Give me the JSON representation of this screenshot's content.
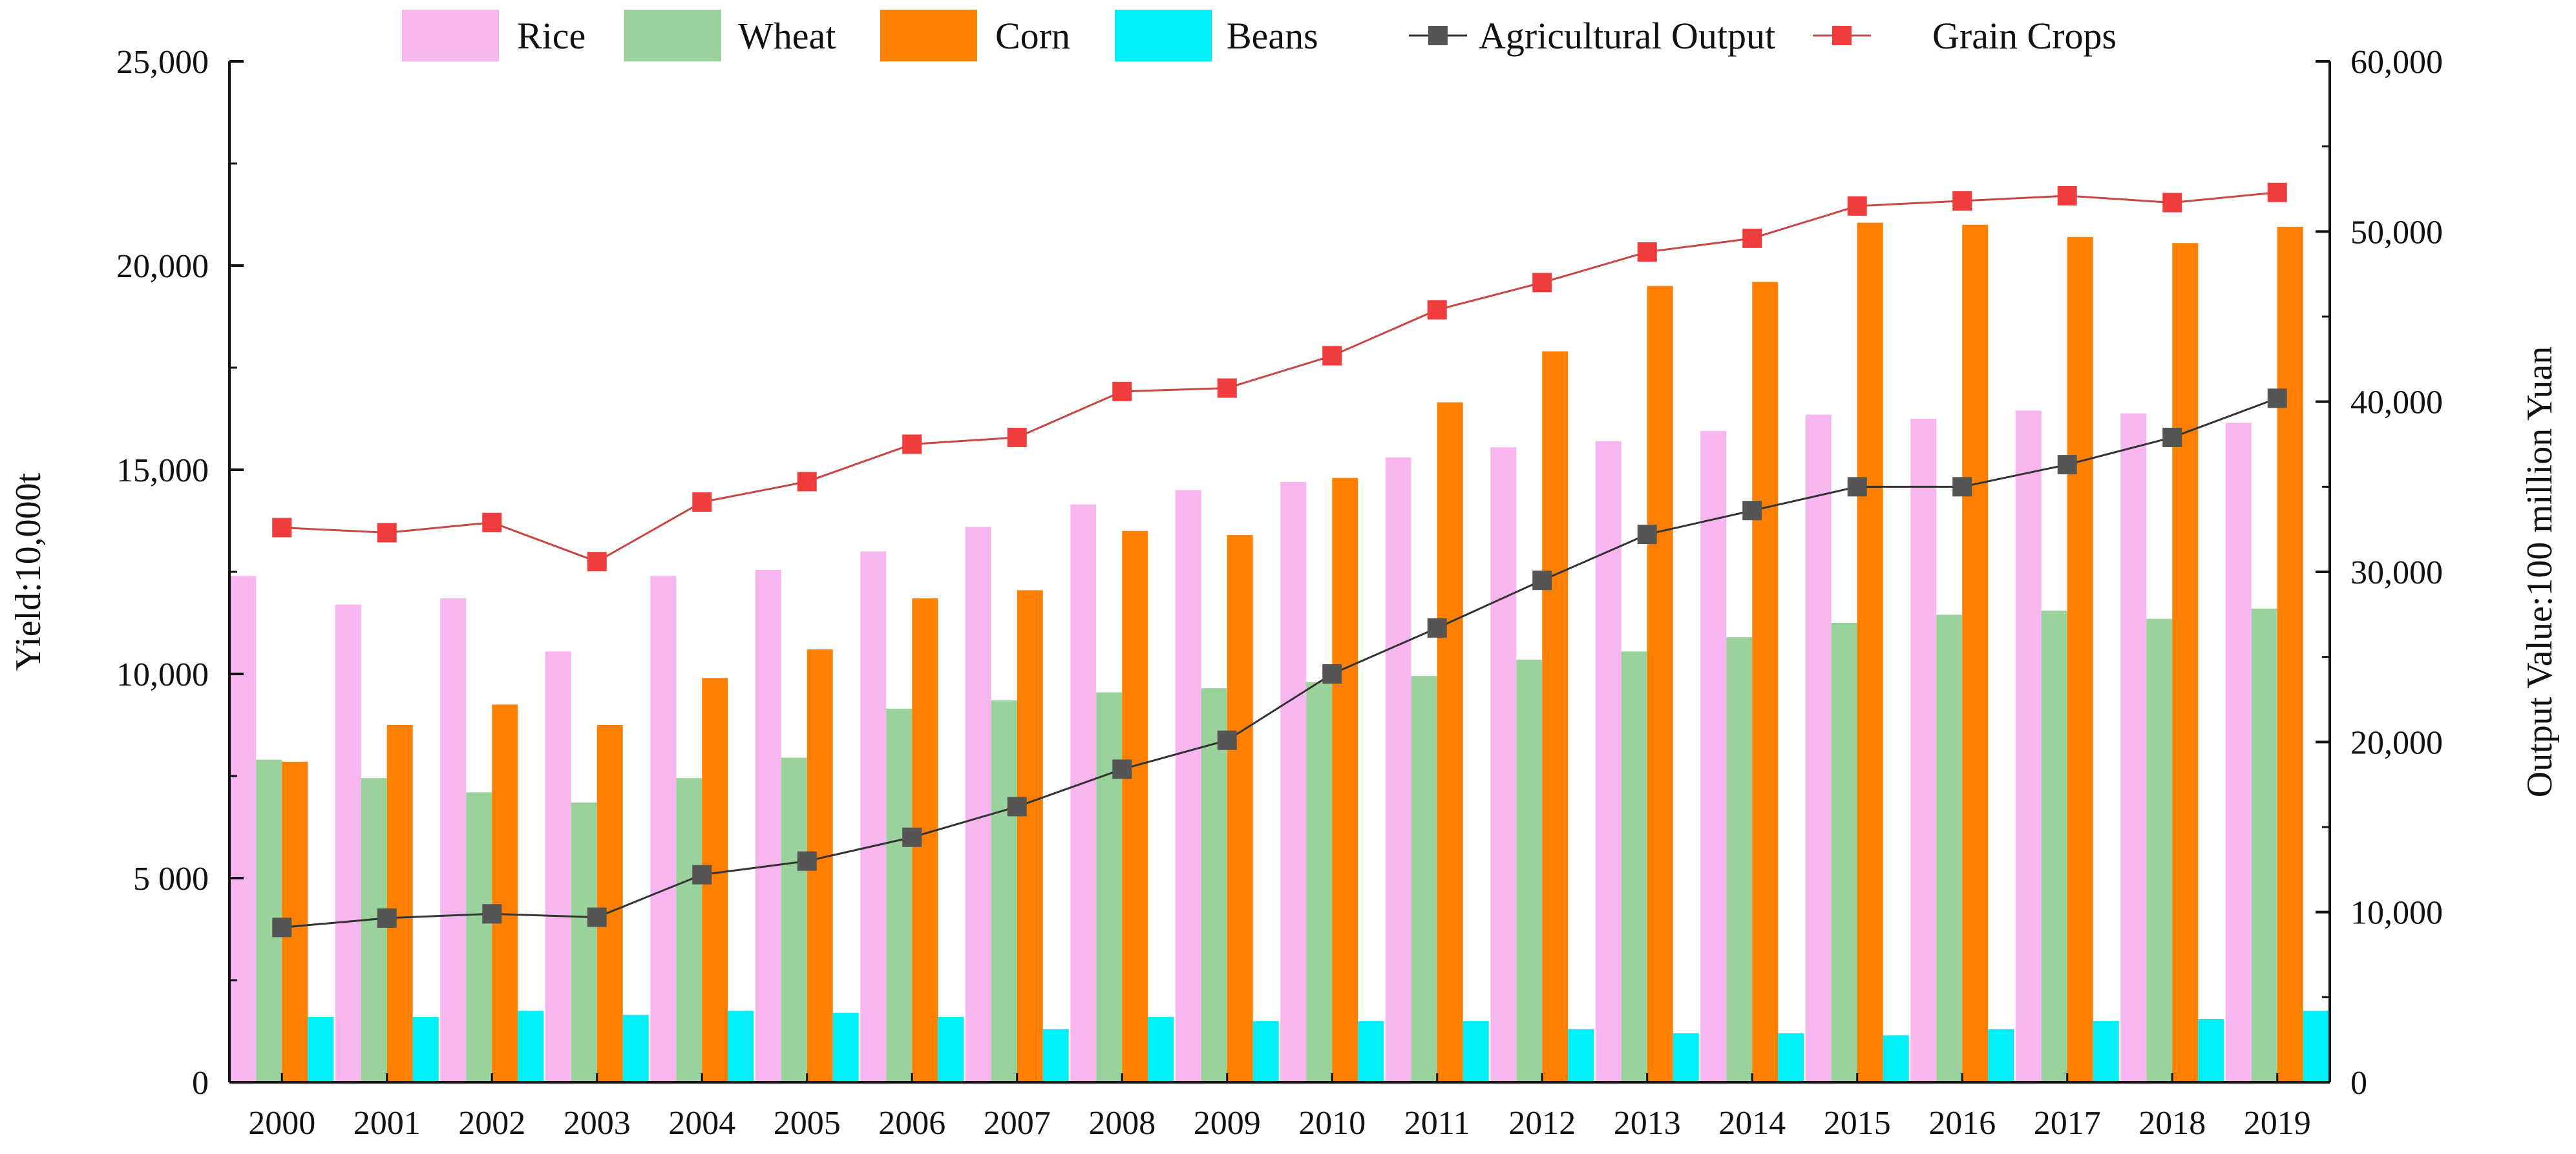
{
  "chart_data": {
    "type": "bar",
    "title": "",
    "xlabel": "",
    "ylabel": "Yield:10,000t",
    "y2label": "Output Value:100 million Yuan",
    "ylim": [
      0,
      25000
    ],
    "y2lim": [
      0,
      60000
    ],
    "grid": false,
    "legend_position": "top",
    "categories": [
      "2000",
      "2001",
      "2002",
      "2003",
      "2004",
      "2005",
      "2006",
      "2007",
      "2008",
      "2009",
      "2010",
      "2011",
      "2012",
      "2013",
      "2014",
      "2015",
      "2016",
      "2017",
      "2018",
      "2019"
    ],
    "y_ticks": [
      0,
      5000,
      10000,
      15000,
      20000,
      25000
    ],
    "y_tick_labels": [
      "0",
      "5 000",
      "10,000",
      "15,000",
      "20,000",
      "25,000"
    ],
    "y2_ticks": [
      0,
      10000,
      20000,
      30000,
      40000,
      50000,
      60000
    ],
    "y2_tick_labels": [
      "0",
      "10,000",
      "20,000",
      "30,000",
      "40,000",
      "50,000",
      "60,000"
    ],
    "series": [
      {
        "name": "Rice",
        "kind": "bar",
        "axis": "left",
        "color": "#f7b6ef",
        "values": [
          12400,
          11700,
          11850,
          10550,
          12400,
          12550,
          13000,
          13600,
          14150,
          14500,
          14700,
          15300,
          15550,
          15700,
          15950,
          16350,
          16250,
          16450,
          16380,
          16150
        ]
      },
      {
        "name": "Wheat",
        "kind": "bar",
        "axis": "left",
        "color": "#99d39b",
        "values": [
          7900,
          7450,
          7100,
          6850,
          7450,
          7950,
          9150,
          9350,
          9550,
          9650,
          9800,
          9950,
          10350,
          10550,
          10900,
          11250,
          11450,
          11550,
          11350,
          11600
        ]
      },
      {
        "name": "Corn",
        "kind": "bar",
        "axis": "left",
        "color": "#ff8000",
        "values": [
          7850,
          8750,
          9250,
          8750,
          9900,
          10600,
          11850,
          12050,
          13500,
          13400,
          14800,
          16650,
          17900,
          19500,
          19600,
          21050,
          21000,
          20700,
          20550,
          20950
        ]
      },
      {
        "name": "Beans",
        "kind": "bar",
        "axis": "left",
        "color": "#00f0f8",
        "values": [
          1600,
          1600,
          1750,
          1650,
          1750,
          1700,
          1600,
          1300,
          1600,
          1500,
          1500,
          1500,
          1300,
          1200,
          1200,
          1150,
          1300,
          1500,
          1550,
          1750
        ]
      },
      {
        "name": "Agricultural Output",
        "kind": "line",
        "axis": "right",
        "color": "#555555",
        "line_color": "#333333",
        "values": [
          9100,
          9650,
          9900,
          9700,
          12200,
          13000,
          14400,
          16200,
          18400,
          20100,
          24000,
          26700,
          29500,
          32200,
          33600,
          35000,
          35000,
          36300,
          37900,
          40200
        ]
      },
      {
        "name": "Grain Crops",
        "kind": "line",
        "axis": "right",
        "color": "#f03c3c",
        "line_color": "#c84646",
        "values": [
          32600,
          32300,
          32900,
          30600,
          34100,
          35300,
          37500,
          37900,
          40600,
          40800,
          42700,
          45400,
          47000,
          48800,
          49600,
          51500,
          51800,
          52100,
          51700,
          52300
        ]
      }
    ]
  }
}
